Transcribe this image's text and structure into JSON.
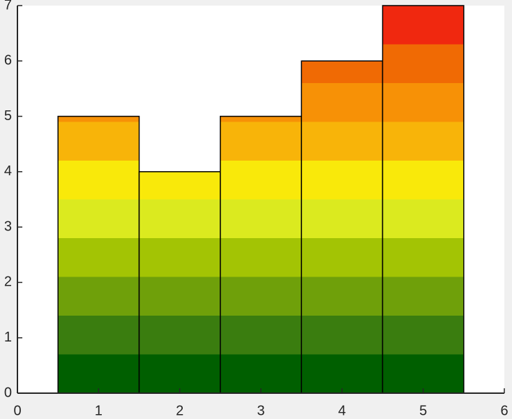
{
  "chart_data": {
    "type": "bar",
    "x": [
      1,
      2,
      3,
      4,
      5
    ],
    "values": [
      5,
      4,
      5,
      6,
      7
    ],
    "xlim": [
      0,
      6
    ],
    "xticks": [
      0,
      1,
      2,
      3,
      4,
      5,
      6
    ],
    "ylim": [
      0,
      7
    ],
    "yticks": [
      0,
      1,
      2,
      3,
      4,
      5,
      6,
      7
    ],
    "edge_color": "#000000",
    "colormap": [
      "#005f00",
      "#3a7d0f",
      "#6fa00a",
      "#a3c404",
      "#dbea1f",
      "#f9e90a",
      "#f8b409",
      "#f79106",
      "#f06a04",
      "#f0280f"
    ],
    "grid": false
  }
}
